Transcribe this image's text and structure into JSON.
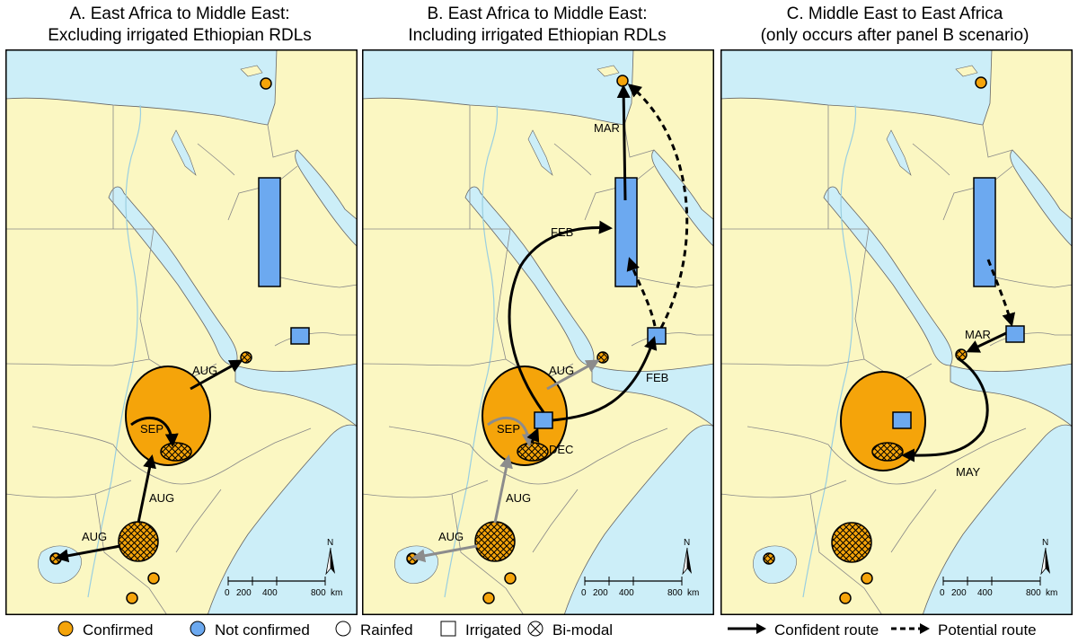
{
  "panels": [
    {
      "title_line1": "A. East Africa to Middle East:",
      "title_line2": "Excluding irrigated Ethiopian RDLs",
      "labels": {
        "aug1": "AUG",
        "aug2": "AUG",
        "aug3": "AUG",
        "sep": "SEP"
      }
    },
    {
      "title_line1": "B. East Africa to Middle East:",
      "title_line2": "Including irrigated Ethiopian RDLs",
      "labels": {
        "aug1": "AUG",
        "aug2": "AUG",
        "aug3": "AUG",
        "sep": "SEP",
        "dec": "DEC",
        "feb1": "FEB",
        "feb2": "FEB",
        "mar": "MAR"
      }
    },
    {
      "title_line1": "C. Middle East to East Africa",
      "title_line2": "(only occurs after panel B scenario)",
      "labels": {
        "mar": "MAR",
        "may": "MAY"
      }
    }
  ],
  "scalebar": {
    "ticks": [
      "0",
      "200",
      "400",
      "800"
    ],
    "unit": "km"
  },
  "north_label": "N",
  "legend": {
    "confirmed": "Confirmed",
    "not_confirmed": "Not confirmed",
    "rainfed": "Rainfed",
    "irrigated": "Irrigated",
    "bimodal": "Bi-modal",
    "confident_route": "Confident route",
    "potential_route": "Potential route"
  },
  "colors": {
    "confirmed": "#F5A40A",
    "not_confirmed": "#6CA9F0",
    "sea": "#CCEEF8",
    "land": "#FBF7C2",
    "route_grey": "#8C8C8C"
  }
}
